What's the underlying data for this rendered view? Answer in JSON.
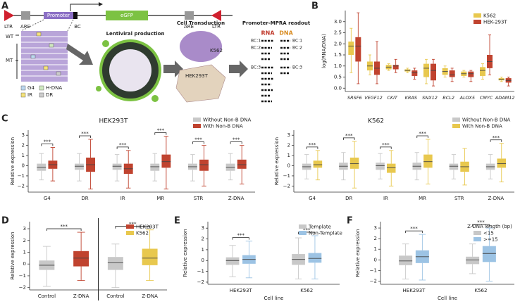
{
  "diagram": {
    "panel": "A",
    "ltr": "LTR",
    "are": "ARE",
    "promoter": "Promoter",
    "egfp": "eGFP",
    "bc": "BC",
    "wt": "WT",
    "mt": "MT",
    "legend": [
      "G4",
      "H-DNA",
      "IR",
      "DR"
    ],
    "step1": "Lentiviral production",
    "step2": "Cell Transduction",
    "k562": "K562",
    "hek": "HEK293T",
    "step3": "Promoter-MPRA readout",
    "rna": "RNA",
    "dna": "DNA",
    "barcodes": [
      "BC:1",
      "BC:2",
      "BC:3"
    ]
  },
  "chart_data": [
    {
      "type": "box",
      "panel": "B",
      "ylabel": "log(RNA/DNA)",
      "legend": "upper right",
      "categories": [
        "SRSF6",
        "VEGF12",
        "CKIT",
        "KRAS",
        "SNX12",
        "BCL2",
        "ALOX5",
        "CMYC",
        "ADAM12"
      ],
      "ylim": [
        -0.15,
        3.5
      ],
      "yticks": [
        {
          "value": 0,
          "label": "0.0"
        },
        0.5,
        {
          "value": 1,
          "label": "1.0"
        },
        1.5,
        {
          "value": 2,
          "label": "2.0"
        },
        2.5,
        {
          "value": 3,
          "label": "3.0"
        }
      ],
      "series": [
        {
          "name": "K562",
          "color": "#e8c84e",
          "whislo": [
            0.7,
            0.6,
            0.8,
            0.7,
            0.2,
            0.5,
            0.5,
            0.4,
            0.3
          ],
          "q1": [
            1.5,
            0.8,
            0.85,
            0.75,
            0.5,
            0.6,
            0.55,
            0.55,
            0.35
          ],
          "med": [
            1.9,
            1.0,
            0.95,
            0.8,
            0.9,
            0.75,
            0.65,
            0.8,
            0.4
          ],
          "q3": [
            2.1,
            1.2,
            1.05,
            0.85,
            1.1,
            0.9,
            0.75,
            0.95,
            0.45
          ],
          "whishi": [
            2.7,
            1.5,
            1.1,
            0.9,
            1.3,
            1.0,
            0.8,
            1.1,
            0.5
          ]
        },
        {
          "name": "HEK-293T",
          "color": "#c0432f",
          "whislo": [
            0.2,
            0.2,
            0.7,
            0.4,
            0.1,
            0.3,
            0.3,
            0.6,
            0.1
          ],
          "q1": [
            1.2,
            0.6,
            0.85,
            0.55,
            0.35,
            0.5,
            0.5,
            0.9,
            0.25
          ],
          "med": [
            1.9,
            0.9,
            1.0,
            0.7,
            0.8,
            0.6,
            0.65,
            1.2,
            0.35
          ],
          "q3": [
            2.3,
            1.2,
            1.05,
            0.8,
            1.1,
            0.8,
            0.75,
            1.5,
            0.45
          ],
          "whishi": [
            3.4,
            2.1,
            1.3,
            0.9,
            1.3,
            0.9,
            0.8,
            2.4,
            0.5
          ]
        }
      ]
    },
    {
      "type": "box",
      "panel": "C",
      "title": "HEK293T",
      "ylabel": "Relative expression",
      "legend": "upper right",
      "categories": [
        "G4",
        "DR",
        "IR",
        "MR",
        "STR",
        "Z-DNA"
      ],
      "annotations": [
        "***",
        "***",
        "***",
        "***",
        "***",
        "***"
      ],
      "ylim": [
        -2.6,
        3.5
      ],
      "yticks": [
        {
          "value": -2,
          "label": "−2"
        },
        {
          "value": -1,
          "label": "−1"
        },
        0,
        1,
        2,
        3
      ],
      "series": [
        {
          "name": "Without Non-B DNA",
          "color": "#c8c8c8",
          "whislo": [
            -1.4,
            -1.5,
            -1.5,
            -1.5,
            -1.5,
            -1.4
          ],
          "q1": [
            -0.5,
            -0.4,
            -0.4,
            -0.5,
            -0.4,
            -0.5
          ],
          "med": [
            -0.15,
            -0.05,
            -0.05,
            -0.1,
            -0.1,
            -0.15
          ],
          "q3": [
            0.2,
            0.2,
            0.2,
            0.2,
            0.2,
            0.2
          ],
          "whishi": [
            1.2,
            1.2,
            1.1,
            1.2,
            1.1,
            1.2
          ]
        },
        {
          "name": "With Non-B DNA",
          "color": "#c0432f",
          "whislo": [
            -1.5,
            -2.3,
            -2.2,
            -2.3,
            -2.0,
            -1.8
          ],
          "q1": [
            -0.3,
            -0.6,
            -0.8,
            -0.2,
            -0.5,
            -0.3
          ],
          "med": [
            0.1,
            0.1,
            -0.3,
            0.4,
            0.1,
            0.1
          ],
          "q3": [
            0.5,
            0.8,
            0.2,
            1.1,
            0.6,
            0.6
          ],
          "whishi": [
            1.8,
            2.6,
            1.5,
            2.9,
            2.0,
            2.0
          ]
        }
      ]
    },
    {
      "type": "box",
      "title": "K562",
      "ylabel": "Relative expression",
      "legend": "upper right",
      "categories": [
        "G4",
        "DR",
        "IR",
        "MR",
        "STR",
        "Z-DNA"
      ],
      "annotations": [
        "***",
        "***",
        "***",
        "***",
        null,
        "***"
      ],
      "ylim": [
        -2.6,
        3.5
      ],
      "yticks": [
        {
          "value": -2,
          "label": "−2"
        },
        {
          "value": -1,
          "label": "−1"
        },
        0,
        1,
        2,
        3
      ],
      "series": [
        {
          "name": "Without Non-B DNA",
          "color": "#c8c8c8",
          "whislo": [
            -1.3,
            -1.4,
            -1.3,
            -1.4,
            -1.3,
            -1.3
          ],
          "q1": [
            -0.4,
            -0.4,
            -0.4,
            -0.4,
            -0.4,
            -0.4
          ],
          "med": [
            -0.1,
            -0.05,
            0,
            -0.05,
            -0.05,
            -0.1
          ],
          "q3": [
            0.2,
            0.3,
            0.3,
            0.3,
            0.2,
            0.2
          ],
          "whishi": [
            1.1,
            1.3,
            1.2,
            1.3,
            1.1,
            1.1
          ]
        },
        {
          "name": "With Non-B DNA",
          "color": "#e8c84e",
          "whislo": [
            -1.4,
            -2.2,
            -2.0,
            -1.8,
            -1.9,
            -1.6
          ],
          "q1": [
            -0.2,
            -0.3,
            -0.7,
            -0.2,
            -0.6,
            -0.2
          ],
          "med": [
            0.1,
            0.2,
            -0.2,
            0.4,
            -0.1,
            0.2
          ],
          "q3": [
            0.5,
            0.8,
            0.2,
            1.1,
            0.4,
            0.7
          ],
          "whishi": [
            1.5,
            2.4,
            1.5,
            2.6,
            1.7,
            2.2
          ]
        }
      ]
    },
    {
      "type": "box",
      "panel": "D",
      "ylabel": "Relative expression",
      "legend": "upper right",
      "divider": true,
      "categories": [
        "Control",
        "Z-DNA",
        "Control",
        "Z-DNA"
      ],
      "annotations": [
        null,
        "***",
        null,
        "***"
      ],
      "ylim": [
        -2.2,
        3.6
      ],
      "yticks": [
        {
          "value": -2,
          "label": "−2"
        },
        {
          "value": -1,
          "label": "−1"
        },
        0,
        1,
        2,
        3
      ],
      "legend_entries": [
        {
          "name": "HEK293T",
          "color": "#c0432f"
        },
        {
          "name": "K562",
          "color": "#e8c84e"
        }
      ],
      "series": [
        {
          "colors": [
            "#c8c8c8",
            "#c0432f",
            "#c8c8c8",
            "#e8c84e"
          ],
          "whislo": [
            -1.9,
            -1.4,
            -2.0,
            -1.4
          ],
          "q1": [
            -0.5,
            -0.2,
            -0.5,
            -0.1
          ],
          "med": [
            -0.1,
            0.5,
            0.1,
            0.5
          ],
          "q3": [
            0.3,
            1.1,
            0.6,
            1.3
          ],
          "whishi": [
            1.5,
            2.7,
            1.7,
            2.9
          ]
        }
      ]
    },
    {
      "type": "box",
      "panel": "E",
      "ylabel": "Relative expression",
      "xlabel": "Cell line",
      "legend": "upper right",
      "categories": [
        "HEK293T",
        "K562"
      ],
      "annotations": [
        "***",
        "***"
      ],
      "ylim": [
        -2.2,
        3.6
      ],
      "yticks": [
        {
          "value": -2,
          "label": "−2"
        },
        {
          "value": -1,
          "label": "−1"
        },
        0,
        1,
        2,
        3
      ],
      "series": [
        {
          "name": "Template",
          "color": "#c8c8c8",
          "whislo": [
            -1.5,
            -1.7
          ],
          "q1": [
            -0.4,
            -0.4
          ],
          "med": [
            0,
            0.1
          ],
          "q3": [
            0.3,
            0.6
          ],
          "whishi": [
            1.4,
            2.1
          ]
        },
        {
          "name": "Non-Template",
          "color": "#9cc3e4",
          "whislo": [
            -1.6,
            -1.7
          ],
          "q1": [
            -0.3,
            -0.2
          ],
          "med": [
            0.1,
            0.2
          ],
          "q3": [
            0.5,
            0.7
          ],
          "whishi": [
            1.8,
            2.3
          ]
        }
      ]
    },
    {
      "type": "box",
      "panel": "F",
      "ylabel": "Relative expression",
      "xlabel": "Cell line",
      "legend": "upper right",
      "legend_title": "Z-DNA length (bp)",
      "categories": [
        "HEK293T",
        "K562"
      ],
      "annotations": [
        "***",
        "***"
      ],
      "ylim": [
        -2.3,
        3.6
      ],
      "yticks": [
        {
          "value": -2,
          "label": "−2"
        },
        {
          "value": -1,
          "label": "−1"
        },
        0,
        1,
        2,
        3
      ],
      "series": [
        {
          "name": "<15",
          "color": "#c8c8c8",
          "whislo": [
            -1.8,
            -1.3
          ],
          "q1": [
            -0.5,
            -0.4
          ],
          "med": [
            -0.1,
            0
          ],
          "q3": [
            0.4,
            0.3
          ],
          "whishi": [
            1.5,
            1.5
          ]
        },
        {
          "name": ">=15",
          "color": "#9cc3e4",
          "whislo": [
            -1.9,
            -2.0
          ],
          "q1": [
            -0.3,
            -0.2
          ],
          "med": [
            0.3,
            0.6
          ],
          "q3": [
            0.9,
            1.3
          ],
          "whishi": [
            2.4,
            3.0
          ]
        }
      ]
    }
  ]
}
